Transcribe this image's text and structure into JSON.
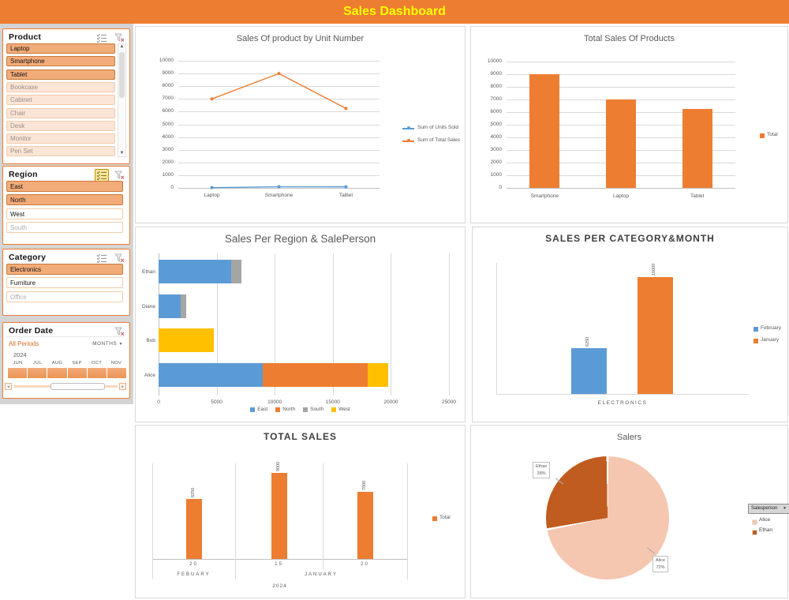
{
  "header": {
    "title": "Sales Dashboard",
    "background": "#ED7D31",
    "title_color": "#FFFF00"
  },
  "slicers": {
    "product": {
      "title": "Product",
      "icons": [
        "multi-select-icon",
        "clear-filter-icon"
      ],
      "multi_select_active": false,
      "has_scrollbar": true,
      "items": [
        {
          "label": "Laptop",
          "state": "selected"
        },
        {
          "label": "Smartphone",
          "state": "selected"
        },
        {
          "label": "Tablet",
          "state": "selected"
        },
        {
          "label": "Bookcase",
          "state": "no-data"
        },
        {
          "label": "Cabinet",
          "state": "no-data"
        },
        {
          "label": "Chair",
          "state": "no-data"
        },
        {
          "label": "Desk",
          "state": "no-data"
        },
        {
          "label": "Monitor",
          "state": "no-data"
        },
        {
          "label": "Pen Set",
          "state": "no-data"
        }
      ]
    },
    "region": {
      "title": "Region",
      "icons": [
        "multi-select-icon",
        "clear-filter-icon"
      ],
      "multi_select_active": true,
      "items": [
        {
          "label": "East",
          "state": "selected"
        },
        {
          "label": "North",
          "state": "selected"
        },
        {
          "label": "West",
          "state": "unselected"
        },
        {
          "label": "South",
          "state": "unselected-no-data"
        }
      ]
    },
    "category": {
      "title": "Category",
      "icons": [
        "multi-select-icon",
        "clear-filter-icon"
      ],
      "multi_select_active": false,
      "items": [
        {
          "label": "Electronics",
          "state": "selected"
        },
        {
          "label": "Furniture",
          "state": "unselected"
        },
        {
          "label": "Office",
          "state": "unselected-no-data"
        }
      ]
    },
    "order_date": {
      "title": "Order Date",
      "icons": [
        "clear-filter-icon"
      ],
      "period_label": "All Periods",
      "level_label": "MONTHS",
      "year": "2024",
      "months": [
        "JUN",
        "JUL",
        "AUG",
        "SEP",
        "OCT",
        "NOV"
      ],
      "selection_color": "#F0A26C"
    }
  },
  "chart_data": [
    {
      "type": "line",
      "title": "Sales Of product by Unit Number",
      "categories": [
        "Laptop",
        "Smartphone",
        "Tablet"
      ],
      "series": [
        {
          "name": "Sum of Units Sold",
          "color": "#5B9BD5",
          "values": [
            20,
            90,
            85
          ]
        },
        {
          "name": "Sum of Total Sales",
          "color": "#ED7D31",
          "values": [
            7000,
            9000,
            6250
          ]
        }
      ],
      "ylim": [
        0,
        10000
      ],
      "ytick": 1000,
      "grid": true,
      "legend_position": "right"
    },
    {
      "type": "bar",
      "title": "Total Sales Of Products",
      "categories": [
        "Smartphone",
        "Laptop",
        "Tablet"
      ],
      "series": [
        {
          "name": "Total",
          "color": "#ED7D31",
          "values": [
            9000,
            7000,
            6250
          ]
        }
      ],
      "ylim": [
        0,
        10000
      ],
      "ytick": 1000,
      "grid": true,
      "legend_position": "right"
    },
    {
      "type": "stacked_barh",
      "title": "Sales Per Region & SalePerson",
      "categories": [
        "Alice",
        "Bob",
        "Diane",
        "Ethan"
      ],
      "series": [
        {
          "name": "East",
          "color": "#5B9BD5",
          "values": [
            9000,
            0,
            1900,
            6250
          ]
        },
        {
          "name": "North",
          "color": "#ED7D31",
          "values": [
            9000,
            0,
            0,
            0
          ]
        },
        {
          "name": "South",
          "color": "#A5A5A5",
          "values": [
            0,
            0,
            500,
            900
          ]
        },
        {
          "name": "West",
          "color": "#FFC000",
          "values": [
            1800,
            4750,
            0,
            0
          ]
        }
      ],
      "xlim": [
        0,
        25000
      ],
      "xtick": 5000,
      "grid": true,
      "legend_position": "bottom"
    },
    {
      "type": "bar",
      "title": "SALES PER CATEGORY&MONTH",
      "categories": [
        "ELECTRONICS"
      ],
      "series": [
        {
          "name": "February",
          "color": "#5B9BD5",
          "values": [
            6250
          ]
        },
        {
          "name": "January",
          "color": "#ED7D31",
          "values": [
            16000
          ]
        }
      ],
      "ylim": [
        0,
        18000
      ],
      "data_labels": true,
      "grid": false,
      "legend_position": "right"
    },
    {
      "type": "bar_grouped_axis",
      "title": "TOTAL SALES",
      "groups": [
        {
          "month": "FEBUARY",
          "items": [
            {
              "day": "20",
              "value": 6250
            }
          ]
        },
        {
          "month": "JANUARY",
          "items": [
            {
              "day": "15",
              "value": 9000
            },
            {
              "day": "20",
              "value": 7000
            }
          ]
        }
      ],
      "year": "2024",
      "series_name": "Total",
      "color": "#ED7D31",
      "ylim": [
        0,
        10000
      ],
      "data_labels": true,
      "legend_position": "right"
    },
    {
      "type": "pie",
      "title": "Salers",
      "field_button": "Salesperson",
      "slices": [
        {
          "name": "Alice",
          "pct": 72,
          "color": "#F5C6B0"
        },
        {
          "name": "Ethan",
          "pct": 28,
          "color": "#C05C1F"
        }
      ],
      "legend_position": "right"
    }
  ]
}
